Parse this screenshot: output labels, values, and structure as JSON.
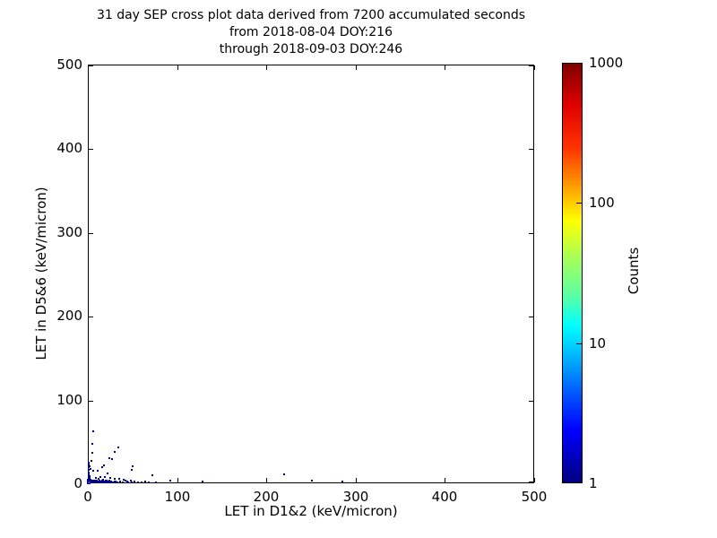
{
  "title": {
    "line1": "31 day SEP cross plot data derived from 7200 accumulated seconds",
    "line2": "from 2018-08-04 DOY:216",
    "line3": "through 2018-09-03 DOY:246"
  },
  "chart_data": {
    "type": "scatter",
    "title": "31 day SEP cross plot data derived from 7200 accumulated seconds from 2018-08-04 DOY:216 through 2018-09-03 DOY:246",
    "xlabel": "LET in D1&2 (keV/micron)",
    "ylabel": "LET in D5&6 (keV/micron)",
    "xlim": [
      0,
      500
    ],
    "ylim": [
      0,
      500
    ],
    "xticks": [
      0,
      100,
      200,
      300,
      400,
      500
    ],
    "yticks": [
      0,
      100,
      200,
      300,
      400,
      500
    ],
    "grid": false,
    "point_color": "#00008c",
    "bright_point_color": "#2e2ed0",
    "points": [
      [
        0.5,
        0.5
      ],
      [
        0.5,
        1.5
      ],
      [
        0.5,
        2.5
      ],
      [
        0.5,
        4
      ],
      [
        1,
        1
      ],
      [
        1,
        2
      ],
      [
        1.5,
        0.5
      ],
      [
        2,
        1
      ],
      [
        2,
        3
      ],
      [
        2.5,
        0.5
      ],
      [
        3,
        1
      ],
      [
        3,
        2
      ],
      [
        3,
        4
      ],
      [
        4,
        1
      ],
      [
        4,
        3
      ],
      [
        5,
        1
      ],
      [
        5,
        2
      ],
      [
        6,
        1
      ],
      [
        6,
        3
      ],
      [
        7,
        1
      ],
      [
        7,
        2
      ],
      [
        8,
        1
      ],
      [
        8,
        3
      ],
      [
        9,
        1
      ],
      [
        9,
        2
      ],
      [
        9,
        6
      ],
      [
        10,
        1
      ],
      [
        10,
        3
      ],
      [
        11,
        1
      ],
      [
        12,
        2
      ],
      [
        12,
        5
      ],
      [
        13,
        1
      ],
      [
        13,
        3
      ],
      [
        14,
        1
      ],
      [
        14,
        7
      ],
      [
        15,
        2
      ],
      [
        16,
        1
      ],
      [
        16,
        3
      ],
      [
        17,
        1
      ],
      [
        17,
        4
      ],
      [
        18,
        2
      ],
      [
        19,
        1
      ],
      [
        19,
        8
      ],
      [
        20,
        3
      ],
      [
        21,
        1
      ],
      [
        21,
        3
      ],
      [
        22,
        2
      ],
      [
        22,
        12
      ],
      [
        23,
        1
      ],
      [
        24,
        3
      ],
      [
        25,
        1
      ],
      [
        25,
        6
      ],
      [
        26,
        2
      ],
      [
        27,
        1
      ],
      [
        28,
        1
      ],
      [
        30,
        2
      ],
      [
        30,
        5
      ],
      [
        31,
        2
      ],
      [
        33,
        1
      ],
      [
        35,
        5
      ],
      [
        36,
        2
      ],
      [
        39,
        1
      ],
      [
        40,
        4
      ],
      [
        42,
        3
      ],
      [
        44,
        2
      ],
      [
        45,
        1
      ],
      [
        48,
        3
      ],
      [
        49,
        1
      ],
      [
        52,
        2
      ],
      [
        56,
        1
      ],
      [
        60,
        1
      ],
      [
        64,
        2
      ],
      [
        68,
        1
      ],
      [
        76,
        1
      ],
      [
        92,
        3
      ],
      [
        129,
        2
      ],
      [
        220,
        11
      ],
      [
        251,
        3
      ],
      [
        285,
        2
      ],
      [
        1,
        5
      ],
      [
        1,
        7
      ],
      [
        1,
        9
      ],
      [
        1,
        11
      ],
      [
        1,
        13
      ],
      [
        1,
        16
      ],
      [
        1,
        19
      ],
      [
        1,
        22
      ],
      [
        1,
        25
      ],
      [
        2,
        6
      ],
      [
        2,
        9
      ],
      [
        2,
        20
      ],
      [
        3,
        17
      ],
      [
        4,
        27
      ],
      [
        5,
        36
      ],
      [
        5,
        47
      ],
      [
        6,
        62
      ],
      [
        6,
        15
      ],
      [
        11,
        15
      ],
      [
        16,
        19
      ],
      [
        18,
        21
      ],
      [
        24,
        30
      ],
      [
        27,
        29
      ],
      [
        30,
        38
      ],
      [
        34,
        43
      ],
      [
        49,
        16
      ],
      [
        50,
        20
      ],
      [
        72,
        10
      ]
    ],
    "bright_points": [
      [
        1,
        1.5
      ],
      [
        2.5,
        1
      ]
    ],
    "colorbar": {
      "label": "Counts",
      "scale": "log",
      "ticks": [
        1000,
        100,
        10,
        1
      ],
      "colormap": "jet",
      "min": 1,
      "max": 1000
    }
  }
}
